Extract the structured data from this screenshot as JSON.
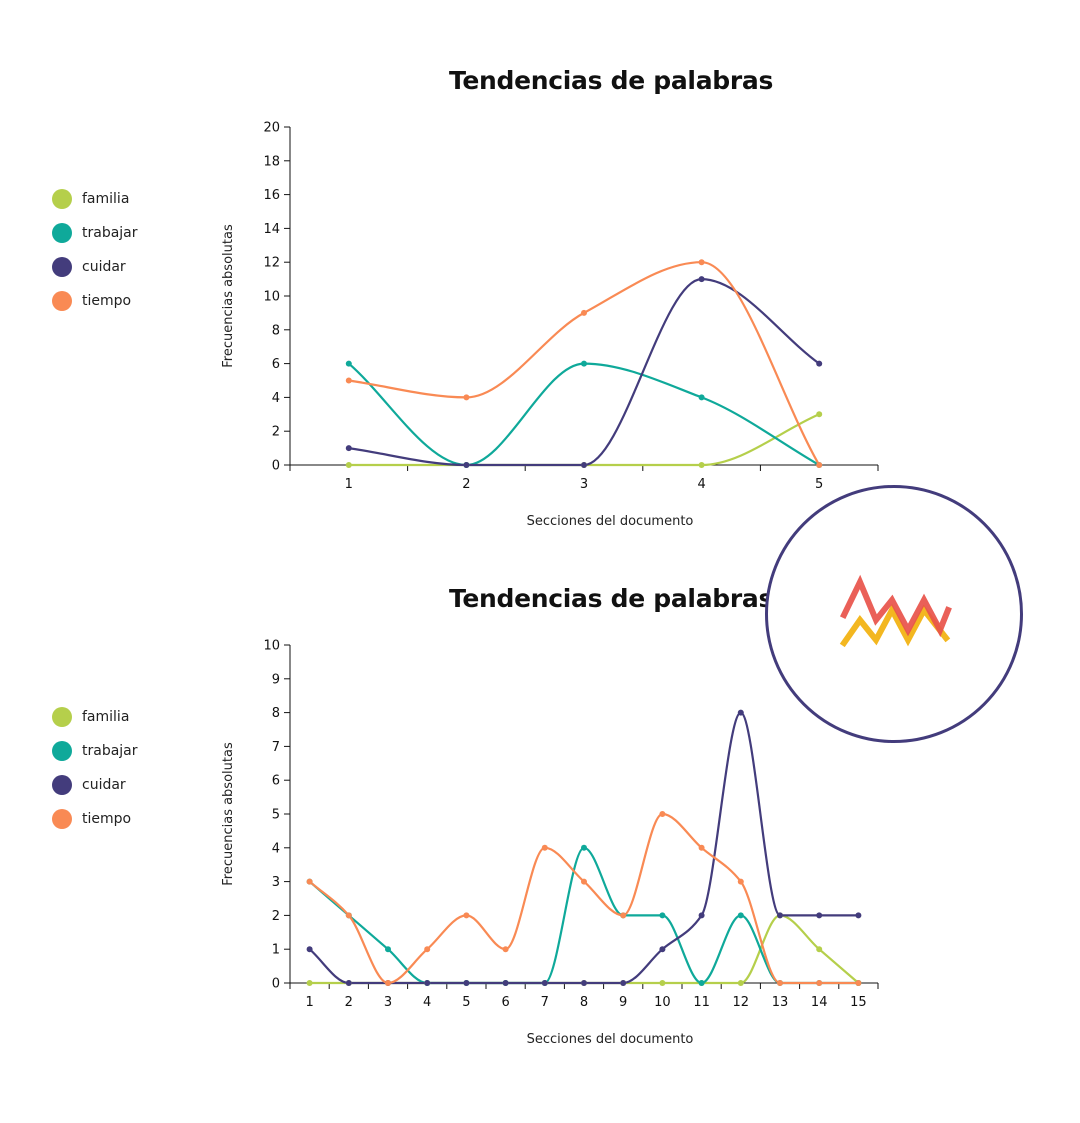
{
  "chart_data": [
    {
      "type": "line",
      "title": "Tendencias de palabras",
      "xlabel": "Secciones del documento",
      "ylabel": "Frecuencias absolutas",
      "categories": [
        "1",
        "2",
        "3",
        "4",
        "5"
      ],
      "ylim": [
        0,
        20
      ],
      "yticks": [
        0,
        2,
        4,
        6,
        8,
        10,
        12,
        14,
        16,
        18,
        20
      ],
      "legend_position": "left",
      "series": [
        {
          "name": "familia",
          "color": "#b5cf4b",
          "values": [
            0,
            0,
            0,
            0,
            3
          ]
        },
        {
          "name": "trabajar",
          "color": "#0fa99a",
          "values": [
            6,
            0,
            6,
            4,
            0
          ]
        },
        {
          "name": "cuidar",
          "color": "#433c7c",
          "values": [
            1,
            0,
            0,
            11,
            6
          ]
        },
        {
          "name": "tiempo",
          "color": "#f98a54",
          "values": [
            5,
            4,
            9,
            12,
            0
          ]
        }
      ]
    },
    {
      "type": "line",
      "title": "Tendencias de palabras",
      "xlabel": "Secciones del documento",
      "ylabel": "Frecuencias absolutas",
      "categories": [
        "1",
        "2",
        "3",
        "4",
        "5",
        "6",
        "7",
        "8",
        "9",
        "10",
        "11",
        "12",
        "13",
        "14",
        "15"
      ],
      "ylim": [
        0,
        10
      ],
      "yticks": [
        0,
        1,
        2,
        3,
        4,
        5,
        6,
        7,
        8,
        9,
        10
      ],
      "legend_position": "left",
      "series": [
        {
          "name": "familia",
          "color": "#b5cf4b",
          "values": [
            0,
            0,
            0,
            0,
            0,
            0,
            0,
            0,
            0,
            0,
            0,
            0,
            2,
            1,
            0
          ]
        },
        {
          "name": "trabajar",
          "color": "#0fa99a",
          "values": [
            3,
            2,
            1,
            0,
            0,
            0,
            0,
            4,
            2,
            2,
            0,
            2,
            0,
            0,
            0
          ]
        },
        {
          "name": "cuidar",
          "color": "#433c7c",
          "values": [
            1,
            0,
            0,
            0,
            0,
            0,
            0,
            0,
            0,
            1,
            2,
            8,
            2,
            2,
            2
          ]
        },
        {
          "name": "tiempo",
          "color": "#f98a54",
          "values": [
            3,
            2,
            0,
            1,
            2,
            1,
            4,
            3,
            2,
            5,
            4,
            3,
            0,
            0,
            0
          ]
        }
      ]
    }
  ],
  "logo": {
    "icon": "zigzag-lines-logo-icon",
    "colors": [
      "#e8534a",
      "#f3b720"
    ]
  }
}
